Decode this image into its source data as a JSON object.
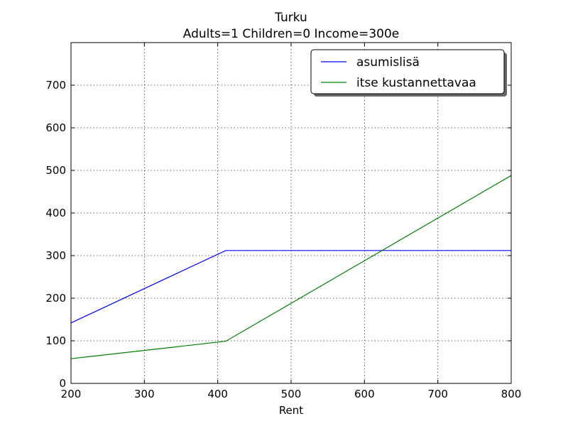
{
  "chart_data": {
    "type": "line",
    "title": "Turku",
    "subtitle": "Adults=1 Children=0 Income=300e",
    "xlabel": "Rent",
    "ylabel": "",
    "xlim": [
      200,
      800
    ],
    "ylim": [
      0,
      800
    ],
    "xticks": [
      200,
      300,
      400,
      500,
      600,
      700,
      800
    ],
    "yticks": [
      0,
      100,
      200,
      300,
      400,
      500,
      600,
      700
    ],
    "grid": true,
    "legend_position": "top-right",
    "series": [
      {
        "name": "asumislisä",
        "color": "#0000ff",
        "x": [
          200,
          411,
          800
        ],
        "y": [
          142,
          312,
          312
        ]
      },
      {
        "name": "itse kustannettavaa",
        "color": "#008000",
        "x": [
          200,
          411,
          800
        ],
        "y": [
          58,
          99,
          488
        ]
      }
    ]
  }
}
